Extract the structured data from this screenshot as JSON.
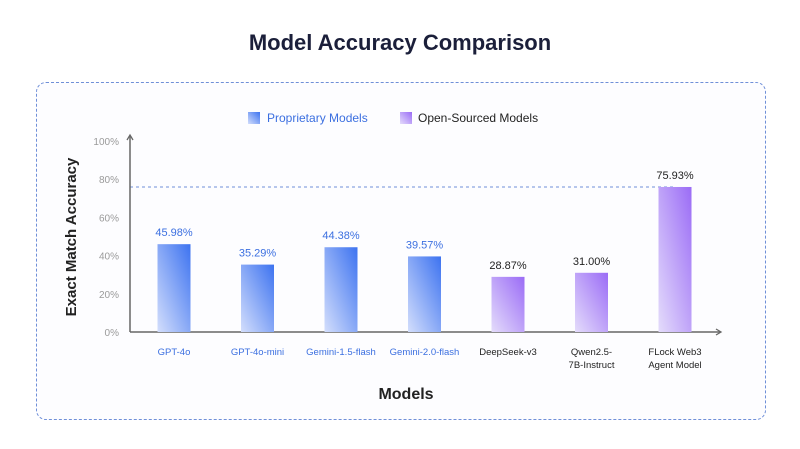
{
  "chart_data": {
    "type": "bar",
    "title": "Model Accuracy Comparison",
    "xlabel": "Models",
    "ylabel": "Exact Match Accuracy",
    "ylim": [
      0,
      100
    ],
    "yticks": [
      "0%",
      "20%",
      "40%",
      "60%",
      "80%",
      "100%"
    ],
    "legend": {
      "placement": "top-center",
      "entries": [
        "Proprietary Models",
        "Open-Sourced Models"
      ]
    },
    "categories": [
      {
        "label": [
          "GPT-4o"
        ],
        "value": 45.98,
        "value_label": "45.98%",
        "group": 0
      },
      {
        "label": [
          "GPT-4o-mini"
        ],
        "value": 35.29,
        "value_label": "35.29%",
        "group": 0
      },
      {
        "label": [
          "Gemini-1.5-flash"
        ],
        "value": 44.38,
        "value_label": "44.38%",
        "group": 0
      },
      {
        "label": [
          "Gemini-2.0-flash"
        ],
        "value": 39.57,
        "value_label": "39.57%",
        "group": 0
      },
      {
        "label": [
          "DeepSeek-v3"
        ],
        "value": 28.87,
        "value_label": "28.87%",
        "group": 1
      },
      {
        "label": [
          "Qwen2.5-",
          "7B-Instruct"
        ],
        "value": 31.0,
        "value_label": "31.00%",
        "group": 1
      },
      {
        "label": [
          "FLock Web3",
          "Agent Model"
        ],
        "value": 75.93,
        "value_label": "75.93%",
        "group": 1
      }
    ],
    "reference_line": 75.93
  },
  "colors": {
    "proprietary": "#3d73f0",
    "open": "#9b6cf6",
    "proprietary_text": "#3b6fe0",
    "open_text": "#222222"
  }
}
